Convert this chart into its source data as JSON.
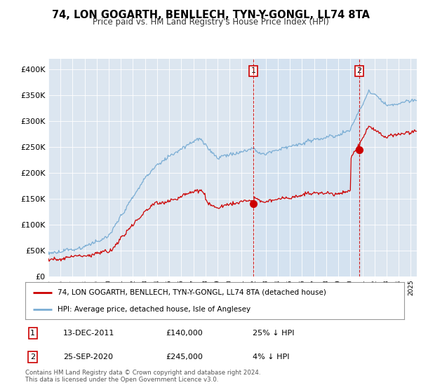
{
  "title": "74, LON GOGARTH, BENLLECH, TYN-Y-GONGL, LL74 8TA",
  "subtitle": "Price paid vs. HM Land Registry's House Price Index (HPI)",
  "ylabel_ticks": [
    "£0",
    "£50K",
    "£100K",
    "£150K",
    "£200K",
    "£250K",
    "£300K",
    "£350K",
    "£400K"
  ],
  "ytick_values": [
    0,
    50000,
    100000,
    150000,
    200000,
    250000,
    300000,
    350000,
    400000
  ],
  "ylim": [
    0,
    420000
  ],
  "legend_label_red": "74, LON GOGARTH, BENLLECH, TYN-Y-GONGL, LL74 8TA (detached house)",
  "legend_label_blue": "HPI: Average price, detached house, Isle of Anglesey",
  "annotation1_date": "13-DEC-2011",
  "annotation1_price": "£140,000",
  "annotation1_hpi": "25% ↓ HPI",
  "annotation2_date": "25-SEP-2020",
  "annotation2_price": "£245,000",
  "annotation2_hpi": "4% ↓ HPI",
  "footer": "Contains HM Land Registry data © Crown copyright and database right 2024.\nThis data is licensed under the Open Government Licence v3.0.",
  "color_red": "#cc0000",
  "color_blue": "#7aadd4",
  "color_vline": "#cc0000",
  "bg_chart": "#dce6f0",
  "bg_shaded": "#dce9f5",
  "purchase1_x": 2011.96,
  "purchase1_y": 140000,
  "purchase2_x": 2020.73,
  "purchase2_y": 245000,
  "xmin": 1995.0,
  "xmax": 2025.5
}
